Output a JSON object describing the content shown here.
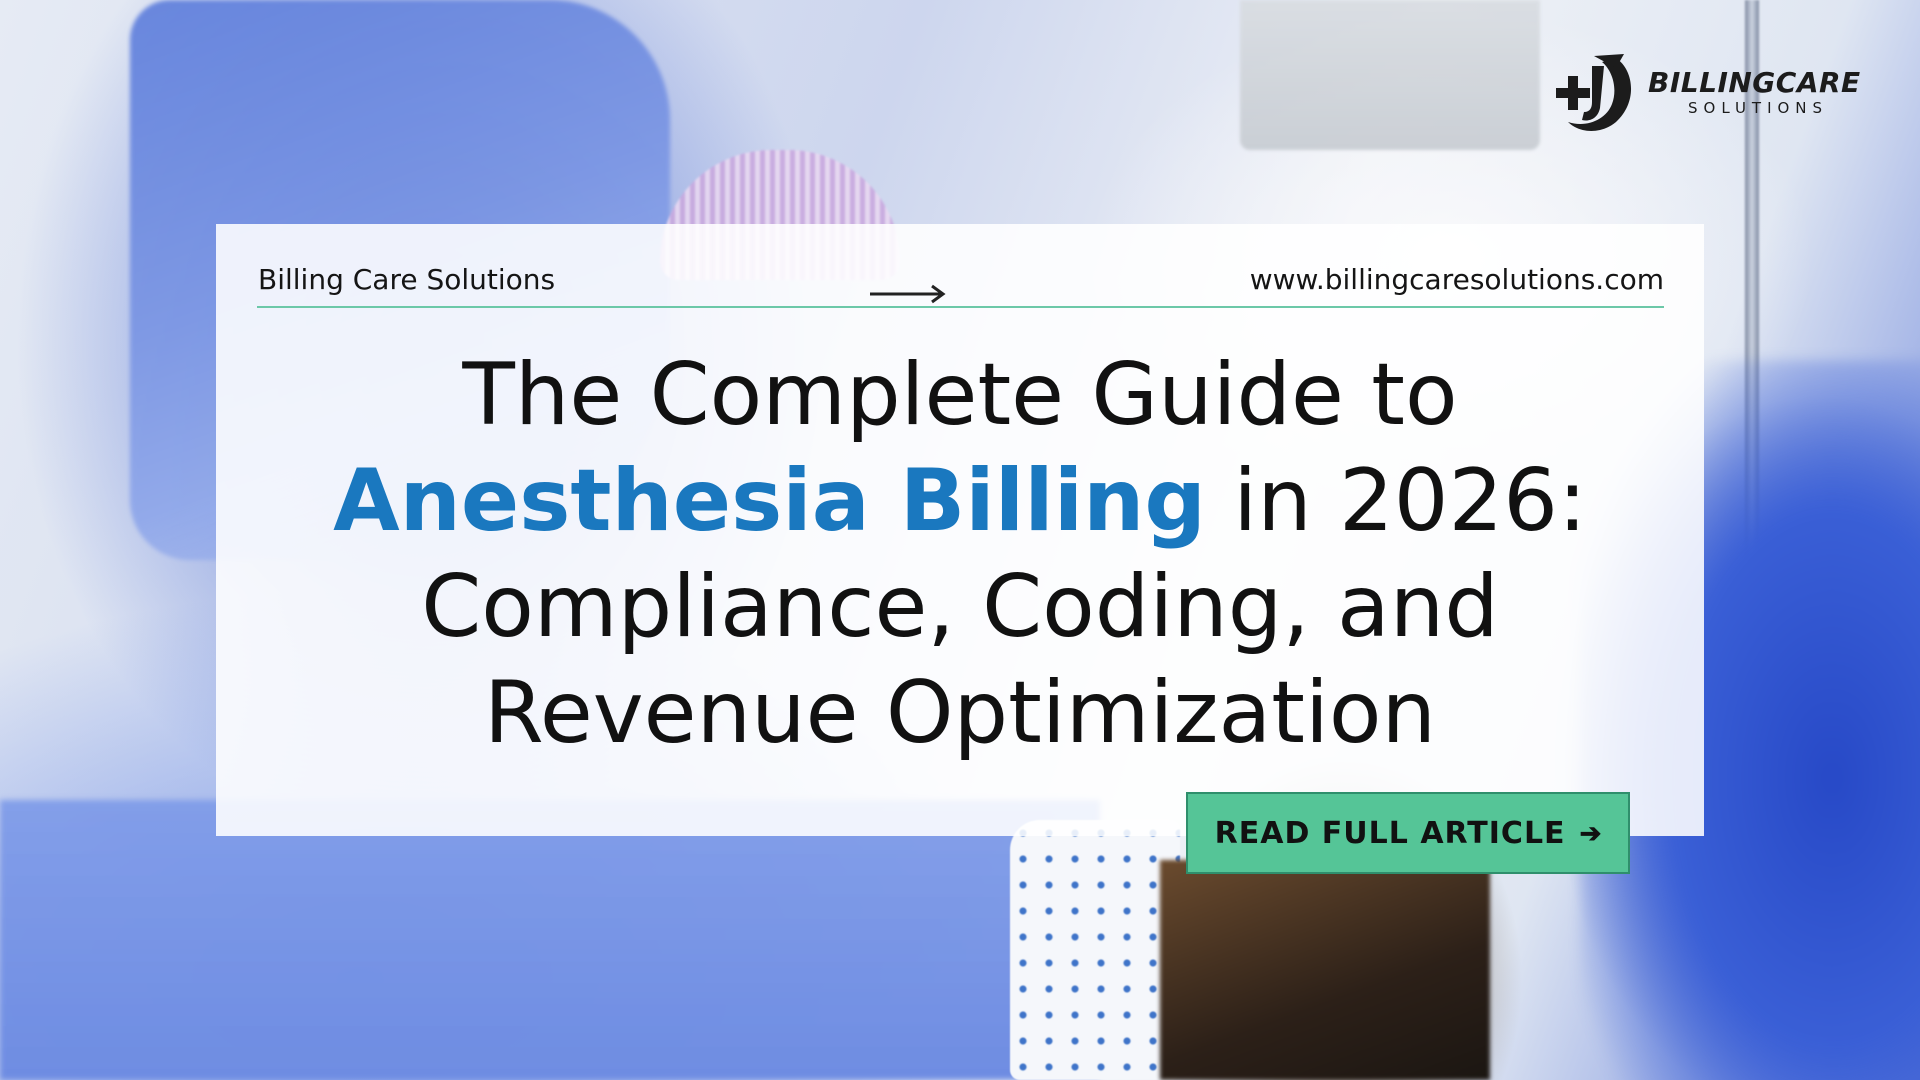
{
  "logo": {
    "name": "BILLINGCARE",
    "tagline": "SOLUTIONS",
    "icon": "medical-cross-swoosh-icon"
  },
  "card": {
    "brand": "Billing Care Solutions",
    "arrow_icon": "long-right-arrow-icon",
    "url": "www.billingcaresolutions.com"
  },
  "headline": {
    "line1": "The Complete Guide to",
    "highlight": "Anesthesia Billing",
    "line2_rest": " in 2026:",
    "line3": "Compliance, Coding, and",
    "line4": "Revenue Optimization"
  },
  "cta": {
    "label": "READ FULL ARTICLE",
    "icon": "right-arrow-icon"
  },
  "colors": {
    "accent_blue": "#1a78bf",
    "accent_green": "#55c597",
    "divider": "#6cc8a8"
  }
}
